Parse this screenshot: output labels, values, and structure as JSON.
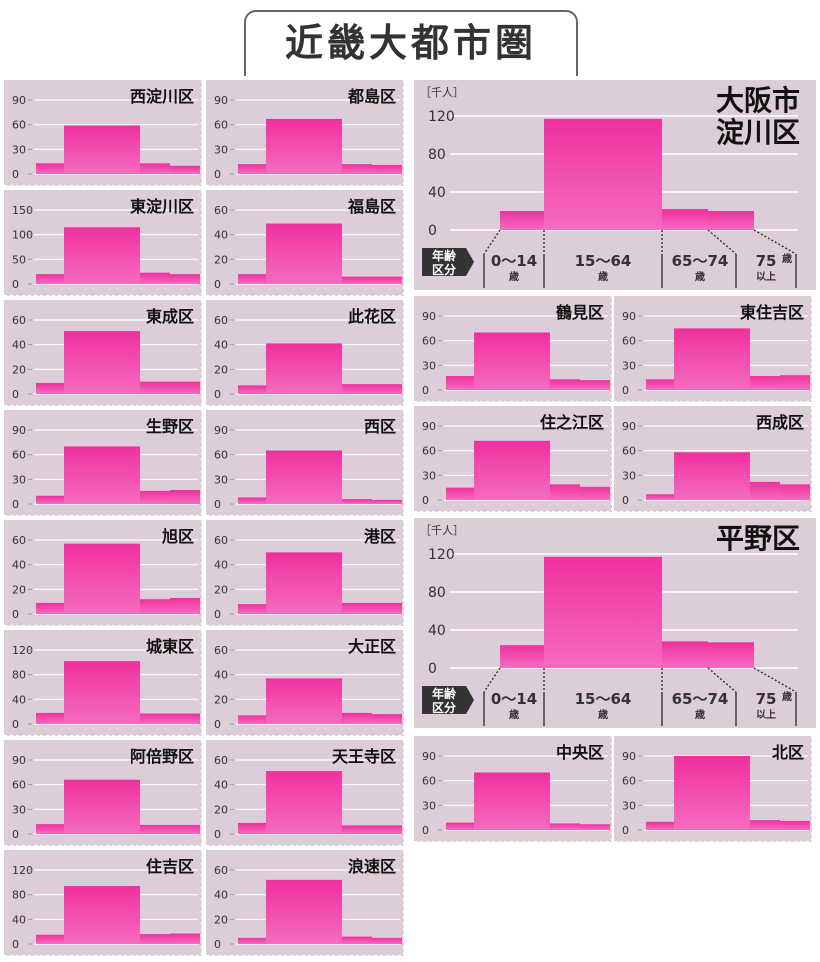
{
  "title": "近畿大都市圏",
  "colors": {
    "panel_bg": "#dccdd8",
    "bar_top": "#f0309f",
    "bar_bottom": "#f56cc0",
    "axis": "#ffffff",
    "text": "#111111",
    "age_badge": "#333333"
  },
  "age_labels": {
    "badge_top": "年齢",
    "badge_bottom": "区分",
    "groups": [
      {
        "num": "0〜14",
        "unit": "歳"
      },
      {
        "num": "15〜64",
        "unit": "歳"
      },
      {
        "num": "65〜74",
        "unit": "歳"
      },
      {
        "num": "75",
        "unit": "歳",
        "unit2": "以上"
      }
    ]
  },
  "unit_label": "［千人］",
  "chart_data": [
    {
      "type": "bar",
      "title": "西淀川区",
      "categories": [
        "0〜14歳",
        "15〜64歳",
        "65〜74歳",
        "75歳以上"
      ],
      "values": [
        13,
        59,
        13,
        10
      ],
      "ylim": [
        0,
        90
      ],
      "yticks": [
        0,
        30,
        60,
        90
      ]
    },
    {
      "type": "bar",
      "title": "都島区",
      "categories": [
        "0〜14歳",
        "15〜64歳",
        "65〜74歳",
        "75歳以上"
      ],
      "values": [
        12,
        67,
        12,
        11
      ],
      "ylim": [
        0,
        90
      ],
      "yticks": [
        0,
        30,
        60,
        90
      ]
    },
    {
      "type": "bar",
      "title": "東淀川区",
      "categories": [
        "0〜14歳",
        "15〜64歳",
        "65〜74歳",
        "75歳以上"
      ],
      "values": [
        20,
        115,
        23,
        20
      ],
      "ylim": [
        0,
        150
      ],
      "yticks": [
        0,
        50,
        100,
        150
      ]
    },
    {
      "type": "bar",
      "title": "福島区",
      "categories": [
        "0〜14歳",
        "15〜64歳",
        "65〜74歳",
        "75歳以上"
      ],
      "values": [
        8,
        49,
        6,
        6
      ],
      "ylim": [
        0,
        60
      ],
      "yticks": [
        0,
        20,
        40,
        60
      ]
    },
    {
      "type": "bar",
      "title": "東成区",
      "categories": [
        "0〜14歳",
        "15〜64歳",
        "65〜74歳",
        "75歳以上"
      ],
      "values": [
        9,
        51,
        10,
        10
      ],
      "ylim": [
        0,
        60
      ],
      "yticks": [
        0,
        20,
        40,
        60
      ]
    },
    {
      "type": "bar",
      "title": "此花区",
      "categories": [
        "0〜14歳",
        "15〜64歳",
        "65〜74歳",
        "75歳以上"
      ],
      "values": [
        7,
        41,
        8,
        8
      ],
      "ylim": [
        0,
        60
      ],
      "yticks": [
        0,
        20,
        40,
        60
      ]
    },
    {
      "type": "bar",
      "title": "生野区",
      "categories": [
        "0〜14歳",
        "15〜64歳",
        "65〜74歳",
        "75歳以上"
      ],
      "values": [
        10,
        70,
        16,
        17
      ],
      "ylim": [
        0,
        90
      ],
      "yticks": [
        0,
        30,
        60,
        90
      ]
    },
    {
      "type": "bar",
      "title": "西区",
      "categories": [
        "0〜14歳",
        "15〜64歳",
        "65〜74歳",
        "75歳以上"
      ],
      "values": [
        8,
        65,
        6,
        5
      ],
      "ylim": [
        0,
        90
      ],
      "yticks": [
        0,
        30,
        60,
        90
      ]
    },
    {
      "type": "bar",
      "title": "旭区",
      "categories": [
        "0〜14歳",
        "15〜64歳",
        "65〜74歳",
        "75歳以上"
      ],
      "values": [
        9,
        57,
        12,
        13
      ],
      "ylim": [
        0,
        60
      ],
      "yticks": [
        0,
        20,
        40,
        60
      ]
    },
    {
      "type": "bar",
      "title": "港区",
      "categories": [
        "0〜14歳",
        "15〜64歳",
        "65〜74歳",
        "75歳以上"
      ],
      "values": [
        8,
        50,
        9,
        9
      ],
      "ylim": [
        0,
        60
      ],
      "yticks": [
        0,
        20,
        40,
        60
      ]
    },
    {
      "type": "bar",
      "title": "城東区",
      "categories": [
        "0〜14歳",
        "15〜64歳",
        "65〜74歳",
        "75歳以上"
      ],
      "values": [
        18,
        102,
        17,
        17
      ],
      "ylim": [
        0,
        120
      ],
      "yticks": [
        0,
        40,
        80,
        120
      ]
    },
    {
      "type": "bar",
      "title": "大正区",
      "categories": [
        "0〜14歳",
        "15〜64歳",
        "65〜74歳",
        "75歳以上"
      ],
      "values": [
        7,
        37,
        9,
        8
      ],
      "ylim": [
        0,
        60
      ],
      "yticks": [
        0,
        20,
        40,
        60
      ]
    },
    {
      "type": "bar",
      "title": "阿倍野区",
      "categories": [
        "0〜14歳",
        "15〜64歳",
        "65〜74歳",
        "75歳以上"
      ],
      "values": [
        12,
        66,
        11,
        11
      ],
      "ylim": [
        0,
        90
      ],
      "yticks": [
        0,
        30,
        60,
        90
      ]
    },
    {
      "type": "bar",
      "title": "天王寺区",
      "categories": [
        "0〜14歳",
        "15〜64歳",
        "65〜74歳",
        "75歳以上"
      ],
      "values": [
        9,
        51,
        7,
        7
      ],
      "ylim": [
        0,
        60
      ],
      "yticks": [
        0,
        20,
        40,
        60
      ]
    },
    {
      "type": "bar",
      "title": "住吉区",
      "categories": [
        "0〜14歳",
        "15〜64歳",
        "65〜74歳",
        "75歳以上"
      ],
      "values": [
        15,
        94,
        16,
        17
      ],
      "ylim": [
        0,
        120
      ],
      "yticks": [
        0,
        40,
        80,
        120
      ]
    },
    {
      "type": "bar",
      "title": "浪速区",
      "categories": [
        "0〜14歳",
        "15〜64歳",
        "65〜74歳",
        "75歳以上"
      ],
      "values": [
        5,
        52,
        6,
        5
      ],
      "ylim": [
        0,
        60
      ],
      "yticks": [
        0,
        20,
        40,
        60
      ]
    },
    {
      "type": "bar",
      "title": "大阪市淀川区",
      "categories": [
        "0〜14歳",
        "15〜64歳",
        "65〜74歳",
        "75歳以上"
      ],
      "values": [
        20,
        117,
        22,
        20
      ],
      "ylim": [
        0,
        120
      ],
      "yticks": [
        0,
        40,
        80,
        120
      ]
    },
    {
      "type": "bar",
      "title": "鶴見区",
      "categories": [
        "0〜14歳",
        "15〜64歳",
        "65〜74歳",
        "75歳以上"
      ],
      "values": [
        17,
        70,
        13,
        12
      ],
      "ylim": [
        0,
        90
      ],
      "yticks": [
        0,
        30,
        60,
        90
      ]
    },
    {
      "type": "bar",
      "title": "東住吉区",
      "categories": [
        "0〜14歳",
        "15〜64歳",
        "65〜74歳",
        "75歳以上"
      ],
      "values": [
        13,
        75,
        17,
        18
      ],
      "ylim": [
        0,
        90
      ],
      "yticks": [
        0,
        30,
        60,
        90
      ]
    },
    {
      "type": "bar",
      "title": "住之江区",
      "categories": [
        "0〜14歳",
        "15〜64歳",
        "65〜74歳",
        "75歳以上"
      ],
      "values": [
        15,
        72,
        19,
        16
      ],
      "ylim": [
        0,
        90
      ],
      "yticks": [
        0,
        30,
        60,
        90
      ]
    },
    {
      "type": "bar",
      "title": "西成区",
      "categories": [
        "0〜14歳",
        "15〜64歳",
        "65〜74歳",
        "75歳以上"
      ],
      "values": [
        7,
        58,
        22,
        19
      ],
      "ylim": [
        0,
        90
      ],
      "yticks": [
        0,
        30,
        60,
        90
      ]
    },
    {
      "type": "bar",
      "title": "平野区",
      "categories": [
        "0〜14歳",
        "15〜64歳",
        "65〜74歳",
        "75歳以上"
      ],
      "values": [
        24,
        117,
        28,
        27
      ],
      "ylim": [
        0,
        120
      ],
      "yticks": [
        0,
        40,
        80,
        120
      ]
    },
    {
      "type": "bar",
      "title": "中央区",
      "categories": [
        "0〜14歳",
        "15〜64歳",
        "65〜74歳",
        "75歳以上"
      ],
      "values": [
        9,
        70,
        8,
        7
      ],
      "ylim": [
        0,
        90
      ],
      "yticks": [
        0,
        30,
        60,
        90
      ]
    },
    {
      "type": "bar",
      "title": "北区",
      "categories": [
        "0〜14歳",
        "15〜64歳",
        "65〜74歳",
        "75歳以上"
      ],
      "values": [
        10,
        90,
        12,
        11
      ],
      "ylim": [
        0,
        90
      ],
      "yticks": [
        0,
        30,
        60,
        90
      ]
    }
  ]
}
